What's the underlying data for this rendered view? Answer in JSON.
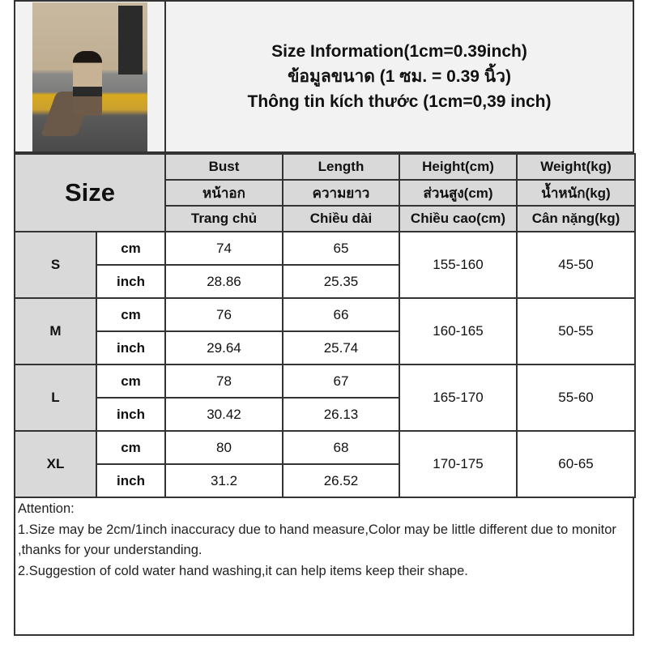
{
  "header": {
    "title_lines": [
      "Size Information(1cm=0.39inch)",
      "ข้อมูลขนาด (1 ซม. = 0.39 นิ้ว)",
      "Thông tin kích thước (1cm=0,39 inch)"
    ]
  },
  "table": {
    "size_label": "Size",
    "columns": [
      [
        "Bust",
        "หน้าอก",
        "Trang chủ"
      ],
      [
        "Length",
        "ความยาว",
        "Chiều dài"
      ],
      [
        "Height(cm)",
        "ส่วนสูง(cm)",
        "Chiều cao(cm)"
      ],
      [
        "Weight(kg)",
        "น้ำหนัก(kg)",
        "Cân nặng(kg)"
      ]
    ],
    "rows": [
      {
        "size": "S",
        "cm_unit": "cm",
        "inch_unit": "inch",
        "bust_cm": "74",
        "length_cm": "65",
        "bust_inch": "28.86",
        "length_inch": "25.35",
        "height": "155-160",
        "weight": "45-50"
      },
      {
        "size": "M",
        "cm_unit": "cm",
        "inch_unit": "inch",
        "bust_cm": "76",
        "length_cm": "66",
        "bust_inch": "29.64",
        "length_inch": "25.74",
        "height": "160-165",
        "weight": "50-55"
      },
      {
        "size": "L",
        "cm_unit": "cm",
        "inch_unit": "inch",
        "bust_cm": "78",
        "length_cm": "67",
        "bust_inch": "30.42",
        "length_inch": "26.13",
        "height": "165-170",
        "weight": "55-60"
      },
      {
        "size": "XL",
        "cm_unit": "cm",
        "inch_unit": "inch",
        "bust_cm": "80",
        "length_cm": "68",
        "bust_inch": "31.2",
        "length_inch": "26.52",
        "height": "170-175",
        "weight": "60-65"
      }
    ]
  },
  "notes": {
    "heading": "Attention:",
    "items": [
      "1.Size may be 2cm/1inch inaccuracy due to hand measure,Color may be little different due to monitor ,thanks for your understanding.",
      "2.Suggestion of cold water hand washing,it can help items keep their shape."
    ]
  },
  "colors": {
    "header_gray": "#d9d9d9",
    "title_bg": "#f2f2f2",
    "border": "#333333"
  }
}
